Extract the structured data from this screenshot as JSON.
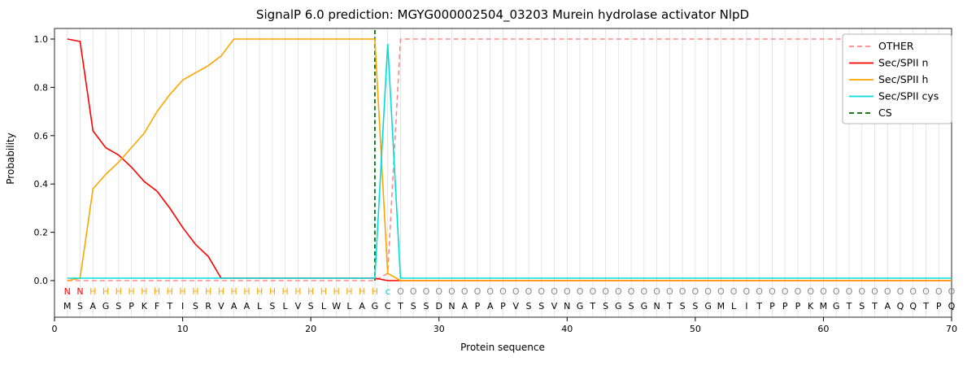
{
  "chart_data": {
    "type": "line",
    "title": "SignalP 6.0 prediction: MGYG000002504_03203 Murein hydrolase activator NlpD",
    "xlabel": "Protein sequence",
    "ylabel": "Probability",
    "xlim": [
      0,
      70
    ],
    "ylim": [
      0.0,
      1.05
    ],
    "x_ticks": [
      0,
      10,
      20,
      30,
      40,
      50,
      60,
      70
    ],
    "y_ticks": [
      0.0,
      0.2,
      0.4,
      0.6,
      0.8,
      1.0
    ],
    "grid": "vertical-per-residue",
    "legend_position": "top-right",
    "x": [
      1,
      2,
      3,
      4,
      5,
      6,
      7,
      8,
      9,
      10,
      11,
      12,
      13,
      14,
      15,
      16,
      17,
      18,
      19,
      20,
      21,
      22,
      23,
      24,
      25,
      26,
      27,
      28,
      29,
      30,
      31,
      32,
      33,
      34,
      35,
      36,
      37,
      38,
      39,
      40,
      41,
      42,
      43,
      44,
      45,
      46,
      47,
      48,
      49,
      50,
      51,
      52,
      53,
      54,
      55,
      56,
      57,
      58,
      59,
      60,
      61,
      62,
      63,
      64,
      65,
      66,
      67,
      68,
      69,
      70
    ],
    "series": [
      {
        "name": "OTHER",
        "color": "#ff8888",
        "dash": true,
        "values": [
          0,
          0,
          0,
          0,
          0,
          0,
          0,
          0,
          0,
          0,
          0,
          0,
          0,
          0,
          0,
          0,
          0,
          0,
          0,
          0,
          0,
          0,
          0,
          0,
          0,
          0.03,
          1,
          1,
          1,
          1,
          1,
          1,
          1,
          1,
          1,
          1,
          1,
          1,
          1,
          1,
          1,
          1,
          1,
          1,
          1,
          1,
          1,
          1,
          1,
          1,
          1,
          1,
          1,
          1,
          1,
          1,
          1,
          1,
          1,
          1,
          1,
          1,
          1,
          1,
          1,
          1,
          1,
          1,
          1,
          1
        ]
      },
      {
        "name": "Sec/SPII n",
        "color": "#ff0000",
        "dash": false,
        "values": [
          1.0,
          0.99,
          0.62,
          0.55,
          0.52,
          0.47,
          0.41,
          0.37,
          0.3,
          0.22,
          0.15,
          0.1,
          0.01,
          0.01,
          0.01,
          0.01,
          0.01,
          0.01,
          0.01,
          0.01,
          0.01,
          0.01,
          0.01,
          0.01,
          0.01,
          0,
          0,
          0,
          0,
          0,
          0,
          0,
          0,
          0,
          0,
          0,
          0,
          0,
          0,
          0,
          0,
          0,
          0,
          0,
          0,
          0,
          0,
          0,
          0,
          0,
          0,
          0,
          0,
          0,
          0,
          0,
          0,
          0,
          0,
          0,
          0,
          0,
          0,
          0,
          0,
          0,
          0,
          0,
          0,
          0
        ]
      },
      {
        "name": "Sec/SPII h",
        "color": "#ffa500",
        "dash": false,
        "values": [
          0,
          0.01,
          0.38,
          0.44,
          0.49,
          0.55,
          0.61,
          0.7,
          0.77,
          0.83,
          0.86,
          0.89,
          0.93,
          1,
          1,
          1,
          1,
          1,
          1,
          1,
          1,
          1,
          1,
          1,
          1,
          0.03,
          0,
          0,
          0,
          0,
          0,
          0,
          0,
          0,
          0,
          0,
          0,
          0,
          0,
          0,
          0,
          0,
          0,
          0,
          0,
          0,
          0,
          0,
          0,
          0,
          0,
          0,
          0,
          0,
          0,
          0,
          0,
          0,
          0,
          0,
          0,
          0,
          0,
          0,
          0,
          0,
          0,
          0,
          0,
          0
        ]
      },
      {
        "name": "Sec/SPII cys",
        "color": "#00dddd",
        "dash": false,
        "values": [
          0.01,
          0.01,
          0.01,
          0.01,
          0.01,
          0.01,
          0.01,
          0.01,
          0.01,
          0.01,
          0.01,
          0.01,
          0.01,
          0.01,
          0.01,
          0.01,
          0.01,
          0.01,
          0.01,
          0.01,
          0.01,
          0.01,
          0.01,
          0.01,
          0.01,
          0.98,
          0.01,
          0.01,
          0.01,
          0.01,
          0.01,
          0.01,
          0.01,
          0.01,
          0.01,
          0.01,
          0.01,
          0.01,
          0.01,
          0.01,
          0.01,
          0.01,
          0.01,
          0.01,
          0.01,
          0.01,
          0.01,
          0.01,
          0.01,
          0.01,
          0.01,
          0.01,
          0.01,
          0.01,
          0.01,
          0.01,
          0.01,
          0.01,
          0.01,
          0.01,
          0.01,
          0.01,
          0.01,
          0.01,
          0.01,
          0.01,
          0.01,
          0.01,
          0.01,
          0.01
        ]
      }
    ],
    "vline": {
      "name": "CS",
      "x": 25,
      "color": "#006400",
      "dash": true
    },
    "sequence": "MSAGSPKFTISRVAALSLVSLWLAGCTSSDNAPAPVSSVNGTSGSGNTSSGMLITPPPKMGTSTAQQTPQ",
    "region_labels": "NNHHHHHHHHHHHHHHHHHHHHHHHcOOOOOOOOOOOOOOOOOOOOOOOOOOOOOOOOOOOOOOOOOOOO",
    "label_colors": {
      "N": "#ff0000",
      "H": "#ffa500",
      "c": "#00cccc",
      "O": "#8a8a8a"
    },
    "colors": {
      "grid": "#e0e0e0",
      "frame": "#2b2b2b",
      "sequence_text": "#000000",
      "legend_border": "#b3b3b3"
    }
  }
}
